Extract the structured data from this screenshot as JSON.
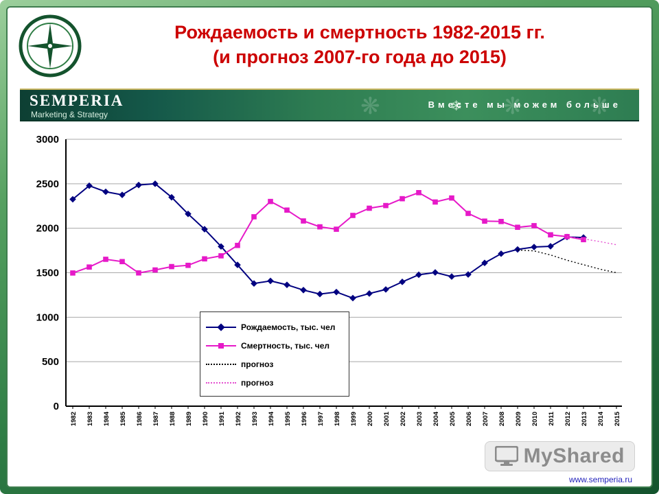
{
  "slide": {
    "title_line1": "Рождаемость и смертность 1982-2015 гг.",
    "title_line2": "(и прогноз 2007-го года до 2015)"
  },
  "header": {
    "brand": "SEMPERIA",
    "brand_sub": "Marketing & Strategy",
    "tagline": "Вместе мы можем больше"
  },
  "footer": {
    "watermark": "MyShared",
    "site": "www.semperia.ru"
  },
  "chart_data": {
    "type": "line",
    "title": "",
    "xlabel": "",
    "ylabel": "",
    "ylim": [
      0,
      3000
    ],
    "yticks": [
      0,
      500,
      1000,
      1500,
      2000,
      2500,
      3000
    ],
    "grid": true,
    "legend_position": "center",
    "x": [
      1982,
      1983,
      1984,
      1985,
      1986,
      1987,
      1988,
      1989,
      1990,
      1991,
      1992,
      1993,
      1994,
      1995,
      1996,
      1997,
      1998,
      1999,
      2000,
      2001,
      2002,
      2003,
      2004,
      2005,
      2006,
      2007,
      2008,
      2009,
      2010,
      2011,
      2012,
      2013,
      2014,
      2015
    ],
    "series": [
      {
        "name": "Рождаемость, тыс. чел",
        "color": "#000080",
        "marker": "diamond",
        "style": "solid",
        "values": [
          2326,
          2478,
          2410,
          2375,
          2486,
          2500,
          2348,
          2161,
          1989,
          1795,
          1588,
          1379,
          1408,
          1364,
          1305,
          1260,
          1283,
          1215,
          1266,
          1312,
          1397,
          1477,
          1503,
          1457,
          1480,
          1610,
          1714,
          1762,
          1789,
          1797,
          1902,
          1896,
          null,
          null
        ]
      },
      {
        "name": "Смертность, тыс. чел",
        "color": "#e619c8",
        "marker": "square",
        "style": "solid",
        "values": [
          1497,
          1564,
          1651,
          1625,
          1498,
          1531,
          1569,
          1583,
          1656,
          1690,
          1807,
          2129,
          2301,
          2204,
          2082,
          2016,
          1989,
          2144,
          2225,
          2255,
          2332,
          2400,
          2295,
          2340,
          2167,
          2080,
          2076,
          2011,
          2029,
          1926,
          1906,
          1872,
          null,
          null
        ]
      },
      {
        "name": "прогноз",
        "color": "#000000",
        "marker": "none",
        "style": "dotted",
        "values": [
          null,
          null,
          null,
          null,
          null,
          null,
          null,
          null,
          null,
          null,
          null,
          null,
          null,
          null,
          null,
          null,
          null,
          null,
          null,
          null,
          null,
          null,
          null,
          null,
          null,
          null,
          null,
          1755,
          1745,
          1700,
          1640,
          1590,
          1540,
          1500
        ]
      },
      {
        "name": "прогноз",
        "color": "#e44fd0",
        "marker": "none",
        "style": "dotted",
        "values": [
          null,
          null,
          null,
          null,
          null,
          null,
          null,
          null,
          null,
          null,
          null,
          null,
          null,
          null,
          null,
          null,
          null,
          null,
          null,
          null,
          null,
          null,
          null,
          null,
          null,
          null,
          null,
          null,
          null,
          null,
          1906,
          1880,
          1850,
          1815
        ]
      }
    ]
  }
}
